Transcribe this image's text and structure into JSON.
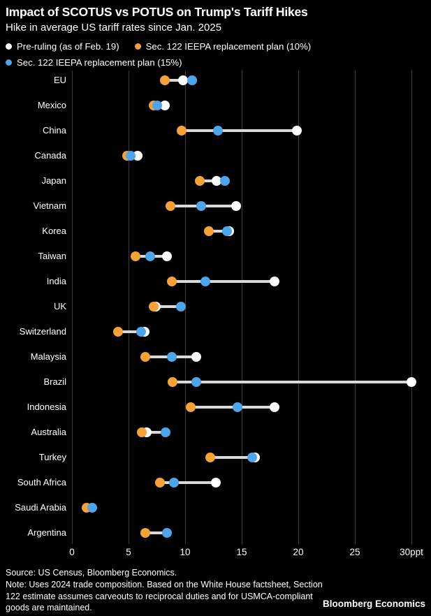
{
  "header": {
    "title": "Impact of SCOTUS vs POTUS on Trump's Tariff Hikes",
    "subtitle": "Hike in average US tariff rates since Jan. 2025"
  },
  "legend": {
    "items": [
      {
        "label": "Pre-ruling (as of Feb. 19)",
        "color": "#ffffff"
      },
      {
        "label": "Sec. 122 IEEPA replacement plan (10%)",
        "color": "#f7a234"
      },
      {
        "label": "Sec. 122 IEEPA replacement plan (15%)",
        "color": "#4da6eb"
      }
    ]
  },
  "chart_data": {
    "type": "scatter",
    "variant": "dumbbell-dot-plot",
    "title": "Impact of SCOTUS vs POTUS on Trump's Tariff Hikes",
    "subtitle": "Hike in average US tariff rates since Jan. 2025",
    "xlabel": "",
    "ylabel": "",
    "unit": "ppt",
    "xlim": [
      0,
      30
    ],
    "grid": true,
    "legend_position": "top",
    "connector_color": "#d9d9d9",
    "gridline_color": "#3a3a3a",
    "background_color": "#000000",
    "x_ticks": [
      {
        "value": 0,
        "label": "0"
      },
      {
        "value": 5,
        "label": "5"
      },
      {
        "value": 10,
        "label": "10"
      },
      {
        "value": 15,
        "label": "15"
      },
      {
        "value": 20,
        "label": "20"
      },
      {
        "value": 25,
        "label": "25"
      },
      {
        "value": 30,
        "label": "30ppt"
      }
    ],
    "categories": [
      "EU",
      "Mexico",
      "China",
      "Canada",
      "Japan",
      "Vietnam",
      "Korea",
      "Taiwan",
      "India",
      "UK",
      "Switzerland",
      "Malaysia",
      "Brazil",
      "Indonesia",
      "Australia",
      "Turkey",
      "South Africa",
      "Saudi Arabia",
      "Argentina"
    ],
    "series": [
      {
        "name": "Pre-ruling (as of Feb. 19)",
        "color": "#ffffff",
        "values": [
          9.8,
          8.2,
          19.9,
          5.8,
          12.8,
          14.5,
          13.9,
          8.4,
          17.9,
          7.4,
          6.4,
          11.0,
          30.0,
          17.9,
          6.6,
          16.2,
          12.7,
          null,
          null
        ]
      },
      {
        "name": "Sec. 122 IEEPA replacement plan (10%)",
        "color": "#f7a234",
        "values": [
          8.2,
          7.2,
          9.7,
          4.9,
          11.3,
          8.7,
          12.1,
          5.6,
          8.8,
          7.2,
          4.1,
          6.5,
          8.9,
          10.5,
          6.2,
          12.2,
          7.8,
          1.3,
          6.5
        ]
      },
      {
        "name": "Sec. 122 IEEPA replacement plan (15%)",
        "color": "#4da6eb",
        "values": [
          10.6,
          7.5,
          12.9,
          5.2,
          13.5,
          11.4,
          13.7,
          6.9,
          11.8,
          9.6,
          6.1,
          8.8,
          11.0,
          14.6,
          8.3,
          15.9,
          9.0,
          1.8,
          8.4
        ]
      }
    ]
  },
  "footer": {
    "source": "Source: US Census, Bloomberg Economics.",
    "note": "Note: Uses 2024 trade composition. Based on the White House factsheet, Section 122 estimate assumes carveouts to reciprocal duties and for USMCA-compliant goods are maintained.",
    "brand": "Bloomberg Economics"
  }
}
